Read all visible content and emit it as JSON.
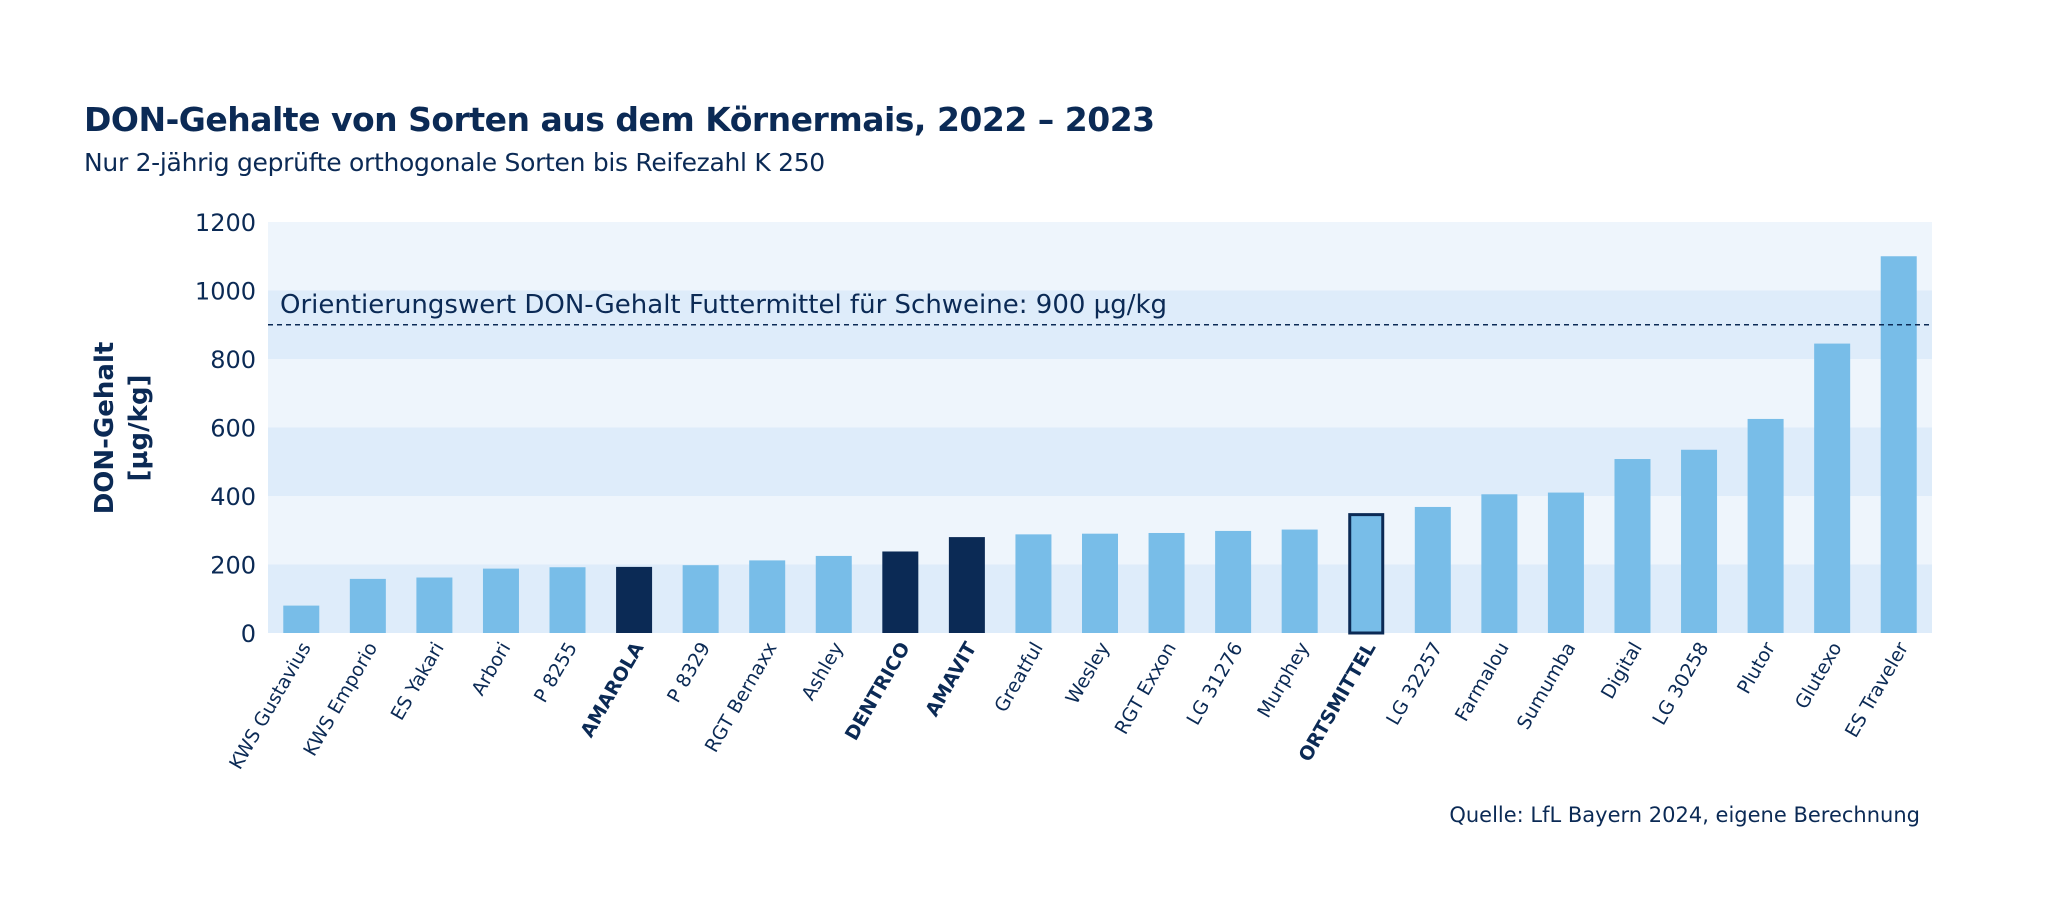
{
  "header": {
    "title": "DON-Gehalte von Sorten aus dem Körnermais, 2022 – 2023",
    "subtitle": "Nur 2-jährig geprüfte orthogonale Sorten bis Reifezahl K 250"
  },
  "footer": {
    "source": "Quelle: LfL Bayern 2024, eigene Berechnung"
  },
  "colors": {
    "bar_standard": "#78bde8",
    "bar_highlight": "#0b2a55",
    "plot_band_light": "#eef5fc",
    "plot_band_dark": "#deecfa",
    "text": "#0b2a55"
  },
  "chart_data": {
    "type": "bar",
    "title": "DON-Gehalte von Sorten aus dem Körnermais, 2022 – 2023",
    "subtitle": "Nur 2-jährig geprüfte orthogonale Sorten bis Reifezahl K 250",
    "ylabel_line1": "DON-Gehalt",
    "ylabel_line2": "[µg/kg]",
    "ylim": [
      0,
      1200
    ],
    "yticks": [
      0,
      200,
      400,
      600,
      800,
      1000,
      1200
    ],
    "grid": "alternating horizontal bands",
    "categories": [
      "KWS Gustavius",
      "KWS Emporio",
      "ES Yakari",
      "Arbori",
      "P 8255",
      "AMAROLA",
      "P 8329",
      "RGT Bernaxx",
      "Ashley",
      "DENTRICO",
      "AMAVIT",
      "Greatful",
      "Wesley",
      "RGT Exxon",
      "LG 31276",
      "Murphey",
      "ORTSMITTEL",
      "LG 32257",
      "Farmalou",
      "Sumumba",
      "Digital",
      "LG 30258",
      "Plutor",
      "Glutexo",
      "ES Traveler"
    ],
    "values": [
      80,
      158,
      162,
      188,
      192,
      193,
      198,
      212,
      225,
      238,
      280,
      288,
      290,
      292,
      298,
      302,
      350,
      368,
      405,
      410,
      508,
      535,
      625,
      845,
      1100
    ],
    "highlighted": [
      "AMAROLA",
      "DENTRICO",
      "AMAVIT"
    ],
    "outlined": [
      "ORTSMITTEL"
    ],
    "reference_line": {
      "value": 900,
      "label": "Orientierungswert DON-Gehalt Futtermittel für Schweine: 900 µg/kg",
      "style": "dashed"
    }
  }
}
